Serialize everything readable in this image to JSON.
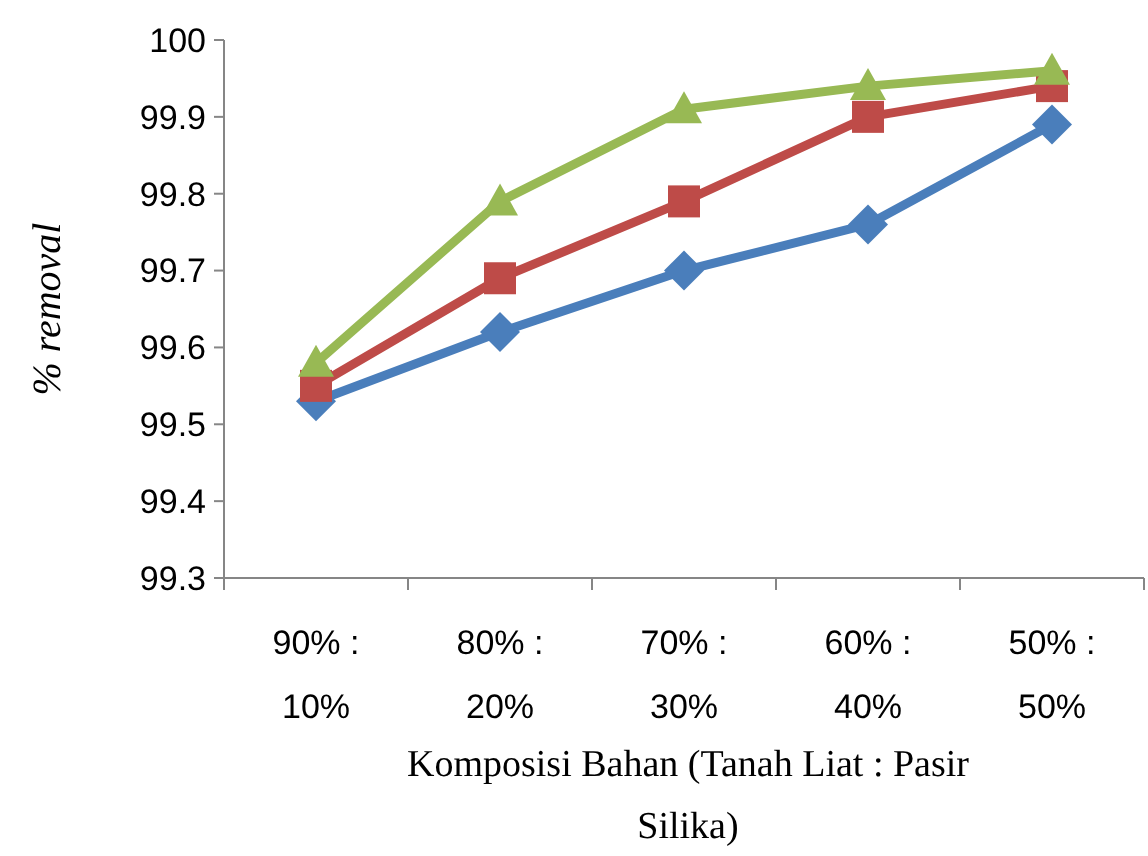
{
  "chart_data": {
    "type": "line",
    "xlabel": "Komposisi Bahan (Tanah Liat : Pasir Silika)",
    "ylabel": "% removal",
    "categories": [
      "90% : 10%",
      "80% : 20%",
      "70% : 30%",
      "60% : 40%",
      "50% : 50%"
    ],
    "series": [
      {
        "color": "#4a7ebb",
        "marker": "diamond",
        "values": [
          99.53,
          99.62,
          99.7,
          99.76,
          99.89
        ]
      },
      {
        "color": "#be4b48",
        "marker": "square",
        "values": [
          99.55,
          99.69,
          99.79,
          99.9,
          99.94
        ]
      },
      {
        "color": "#98b954",
        "marker": "triangle",
        "values": [
          99.58,
          99.79,
          99.91,
          99.94,
          99.96
        ]
      }
    ],
    "ylim": [
      99.3,
      100
    ],
    "yticks": [
      99.3,
      99.4,
      99.5,
      99.6,
      99.7,
      99.8,
      99.9,
      100
    ],
    "grid": false,
    "line_style": "solid"
  }
}
